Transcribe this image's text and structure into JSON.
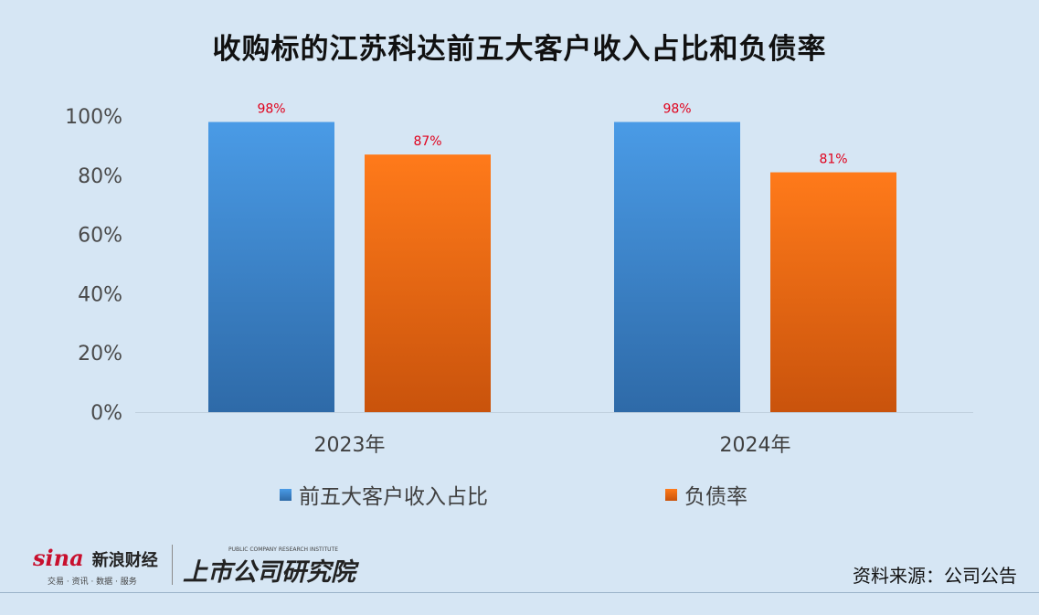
{
  "title": "收购标的江苏科达前五大客户收入占比和负债率",
  "chart_data": {
    "type": "bar",
    "categories": [
      "2023年",
      "2024年"
    ],
    "series": [
      {
        "name": "前五大客户收入占比",
        "values": [
          98,
          98
        ],
        "labels": [
          "98%",
          "98%"
        ],
        "color_top": "#4a9be6",
        "color_bottom": "#2e6aa8"
      },
      {
        "name": "负债率",
        "values": [
          87,
          81
        ],
        "labels": [
          "87%",
          "81%"
        ],
        "color_top": "#ff7a1a",
        "color_bottom": "#c9530c"
      }
    ],
    "ylim": [
      0,
      100
    ],
    "yticks": [
      "0%",
      "20%",
      "40%",
      "60%",
      "80%",
      "100%"
    ],
    "ytick_values": [
      0,
      20,
      40,
      60,
      80,
      100
    ],
    "grid": false,
    "legend_position": "bottom",
    "data_label_color": "#e0001b"
  },
  "footer": {
    "sina_mark": "sina",
    "sina_name": "新浪财经",
    "sina_sub": "交易 · 资讯 · 数据 · 服务",
    "institute_en": "PUBLIC COMPANY RESEARCH INSTITUTE",
    "institute_cn": "上市公司研究院",
    "source": "资料来源：公司公告"
  }
}
